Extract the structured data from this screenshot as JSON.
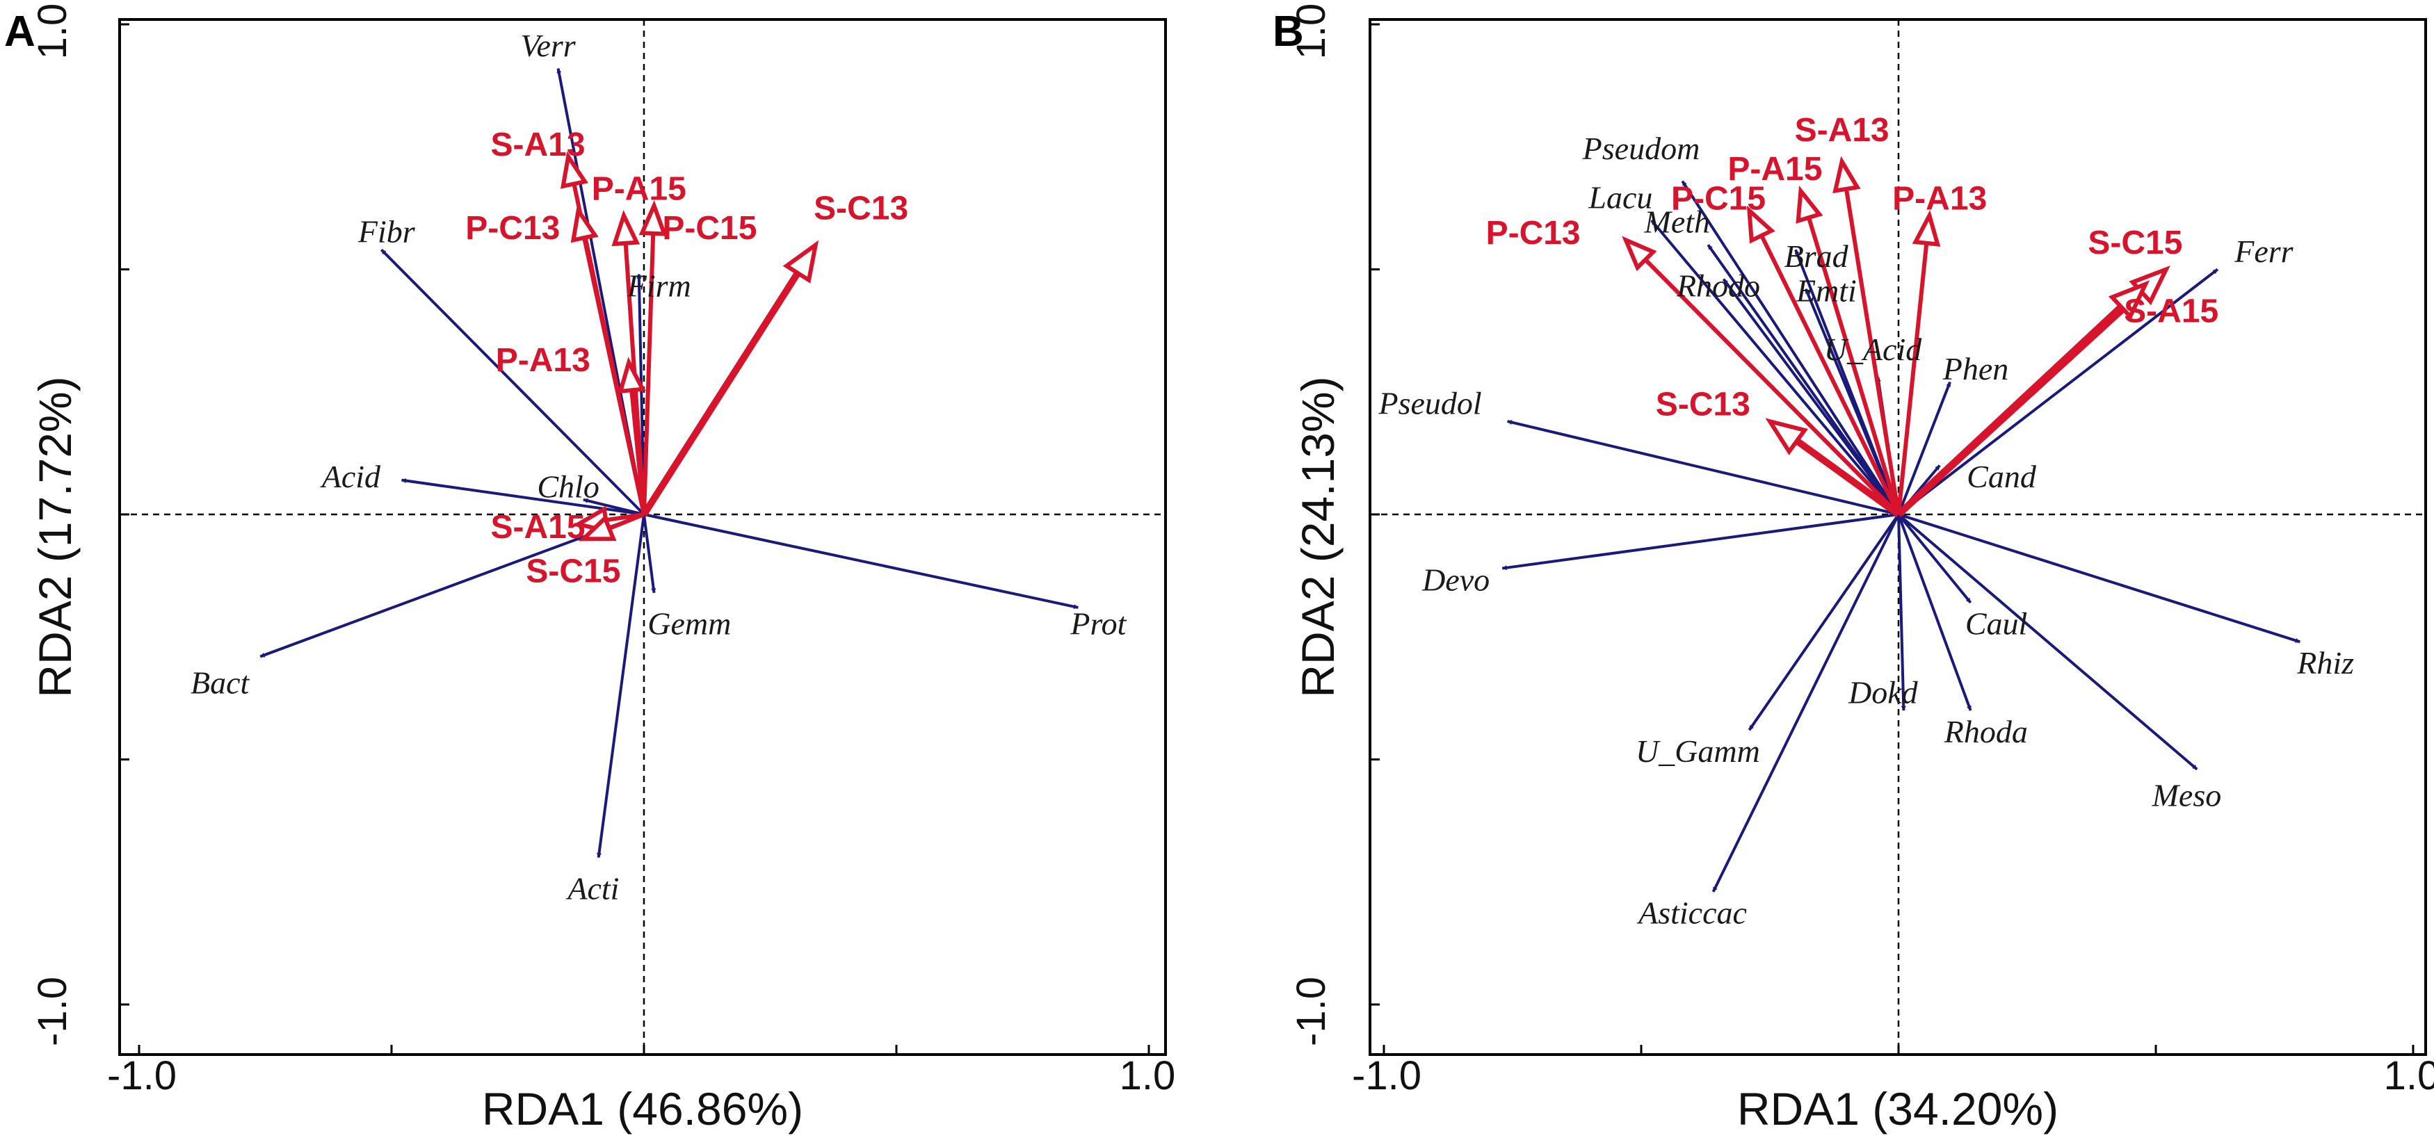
{
  "colors": {
    "species": "#1a1a7a",
    "env": "#d8142c",
    "frame": "#000000"
  },
  "chart_data": [
    {
      "panel": "A",
      "type": "scatter",
      "subtype": "rda-biplot",
      "xlabel": "RDA1 (46.86%)",
      "ylabel": "RDA2 (17.72%)",
      "xlim": [
        -1.0,
        1.0
      ],
      "ylim": [
        -1.0,
        1.0
      ],
      "xticks": [
        "-1.0",
        "1.0"
      ],
      "yticks": [
        "-1.0",
        "1.0"
      ],
      "species": [
        {
          "name": "Verr",
          "x": -0.17,
          "y": 0.91,
          "lx": -0.19,
          "ly": 0.95
        },
        {
          "name": "Fibr",
          "x": -0.52,
          "y": 0.54,
          "lx": -0.51,
          "ly": 0.57
        },
        {
          "name": "Firm",
          "x": -0.01,
          "y": 0.49,
          "lx": 0.03,
          "ly": 0.46
        },
        {
          "name": "Acid",
          "x": -0.48,
          "y": 0.07,
          "lx": -0.58,
          "ly": 0.07
        },
        {
          "name": "Chlo",
          "x": -0.12,
          "y": 0.03,
          "lx": -0.15,
          "ly": 0.05
        },
        {
          "name": "Bact",
          "x": -0.76,
          "y": -0.29,
          "lx": -0.84,
          "ly": -0.35
        },
        {
          "name": "Gemm",
          "x": 0.02,
          "y": -0.16,
          "lx": 0.09,
          "ly": -0.23
        },
        {
          "name": "Prot",
          "x": 0.86,
          "y": -0.19,
          "lx": 0.9,
          "ly": -0.23
        },
        {
          "name": "Acti",
          "x": -0.09,
          "y": -0.7,
          "lx": -0.1,
          "ly": -0.77
        }
      ],
      "environment": [
        {
          "name": "S-A13",
          "x": -0.15,
          "y": 0.73,
          "lx": -0.21,
          "ly": 0.75,
          "bold": false
        },
        {
          "name": "P-A15",
          "x": -0.04,
          "y": 0.61,
          "lx": -0.01,
          "ly": 0.66,
          "bold": false
        },
        {
          "name": "P-C13",
          "x": -0.13,
          "y": 0.62,
          "lx": -0.26,
          "ly": 0.58,
          "bold": false
        },
        {
          "name": "P-C15",
          "x": 0.02,
          "y": 0.63,
          "lx": 0.13,
          "ly": 0.58,
          "bold": false
        },
        {
          "name": "S-C13",
          "x": 0.34,
          "y": 0.55,
          "lx": 0.43,
          "ly": 0.62,
          "bold": true
        },
        {
          "name": "P-A13",
          "x": -0.03,
          "y": 0.31,
          "lx": -0.2,
          "ly": 0.31,
          "bold": false
        },
        {
          "name": "S-A15",
          "x": -0.13,
          "y": -0.02,
          "lx": -0.21,
          "ly": -0.03,
          "bold": false
        },
        {
          "name": "S-C15",
          "x": -0.12,
          "y": -0.05,
          "lx": -0.14,
          "ly": -0.12,
          "bold": false
        }
      ]
    },
    {
      "panel": "B",
      "type": "scatter",
      "subtype": "rda-biplot",
      "xlabel": "RDA1 (34.20%)",
      "ylabel": "RDA2 (24.13%)",
      "xlim": [
        -1.0,
        1.0
      ],
      "ylim": [
        -1.0,
        1.0
      ],
      "xticks": [
        "-1.0",
        "1.0"
      ],
      "yticks": [
        "-1.0",
        "1.0"
      ],
      "species": [
        {
          "name": "Pseudom",
          "x": -0.42,
          "y": 0.68,
          "lx": -0.5,
          "ly": 0.74
        },
        {
          "name": "Lacu",
          "x": -0.48,
          "y": 0.6,
          "lx": -0.54,
          "ly": 0.64
        },
        {
          "name": "Meth",
          "x": -0.37,
          "y": 0.55,
          "lx": -0.43,
          "ly": 0.59
        },
        {
          "name": "Brad",
          "x": -0.2,
          "y": 0.54,
          "lx": -0.16,
          "ly": 0.52
        },
        {
          "name": "Rhodo",
          "x": -0.34,
          "y": 0.48,
          "lx": -0.35,
          "ly": 0.46
        },
        {
          "name": "Emti",
          "x": -0.18,
          "y": 0.46,
          "lx": -0.14,
          "ly": 0.45
        },
        {
          "name": "Ferr",
          "x": 0.62,
          "y": 0.5,
          "lx": 0.71,
          "ly": 0.53
        },
        {
          "name": "U_Acid",
          "x": -0.04,
          "y": 0.28,
          "lx": -0.05,
          "ly": 0.33
        },
        {
          "name": "Phen",
          "x": 0.1,
          "y": 0.27,
          "lx": 0.15,
          "ly": 0.29
        },
        {
          "name": "Pseudol",
          "x": -0.76,
          "y": 0.19,
          "lx": -0.91,
          "ly": 0.22
        },
        {
          "name": "Cand",
          "x": 0.08,
          "y": 0.1,
          "lx": 0.2,
          "ly": 0.07
        },
        {
          "name": "Devo",
          "x": -0.77,
          "y": -0.11,
          "lx": -0.86,
          "ly": -0.14
        },
        {
          "name": "Caul",
          "x": 0.14,
          "y": -0.18,
          "lx": 0.19,
          "ly": -0.23
        },
        {
          "name": "Rhiz",
          "x": 0.78,
          "y": -0.26,
          "lx": 0.83,
          "ly": -0.31
        },
        {
          "name": "Dokd",
          "x": 0.01,
          "y": -0.4,
          "lx": -0.03,
          "ly": -0.37
        },
        {
          "name": "Rhoda",
          "x": 0.14,
          "y": -0.4,
          "lx": 0.17,
          "ly": -0.45
        },
        {
          "name": "U_Gamm",
          "x": -0.29,
          "y": -0.44,
          "lx": -0.39,
          "ly": -0.49
        },
        {
          "name": "Meso",
          "x": 0.58,
          "y": -0.52,
          "lx": 0.56,
          "ly": -0.58
        },
        {
          "name": "Asticcac",
          "x": -0.36,
          "y": -0.77,
          "lx": -0.4,
          "ly": -0.82
        }
      ],
      "environment": [
        {
          "name": "S-A13",
          "x": -0.11,
          "y": 0.72,
          "lx": -0.11,
          "ly": 0.78,
          "bold": false
        },
        {
          "name": "P-A15",
          "x": -0.19,
          "y": 0.66,
          "lx": -0.24,
          "ly": 0.7,
          "bold": false
        },
        {
          "name": "P-C15",
          "x": -0.29,
          "y": 0.62,
          "lx": -0.35,
          "ly": 0.64,
          "bold": false
        },
        {
          "name": "P-A13",
          "x": 0.06,
          "y": 0.61,
          "lx": 0.08,
          "ly": 0.64,
          "bold": false
        },
        {
          "name": "P-C13",
          "x": -0.53,
          "y": 0.56,
          "lx": -0.71,
          "ly": 0.57,
          "bold": false
        },
        {
          "name": "S-C15",
          "x": 0.52,
          "y": 0.5,
          "lx": 0.46,
          "ly": 0.55,
          "bold": true
        },
        {
          "name": "S-A15",
          "x": 0.48,
          "y": 0.47,
          "lx": 0.53,
          "ly": 0.41,
          "bold": true
        },
        {
          "name": "S-C13",
          "x": -0.25,
          "y": 0.19,
          "lx": -0.38,
          "ly": 0.22,
          "bold": true
        }
      ]
    }
  ]
}
